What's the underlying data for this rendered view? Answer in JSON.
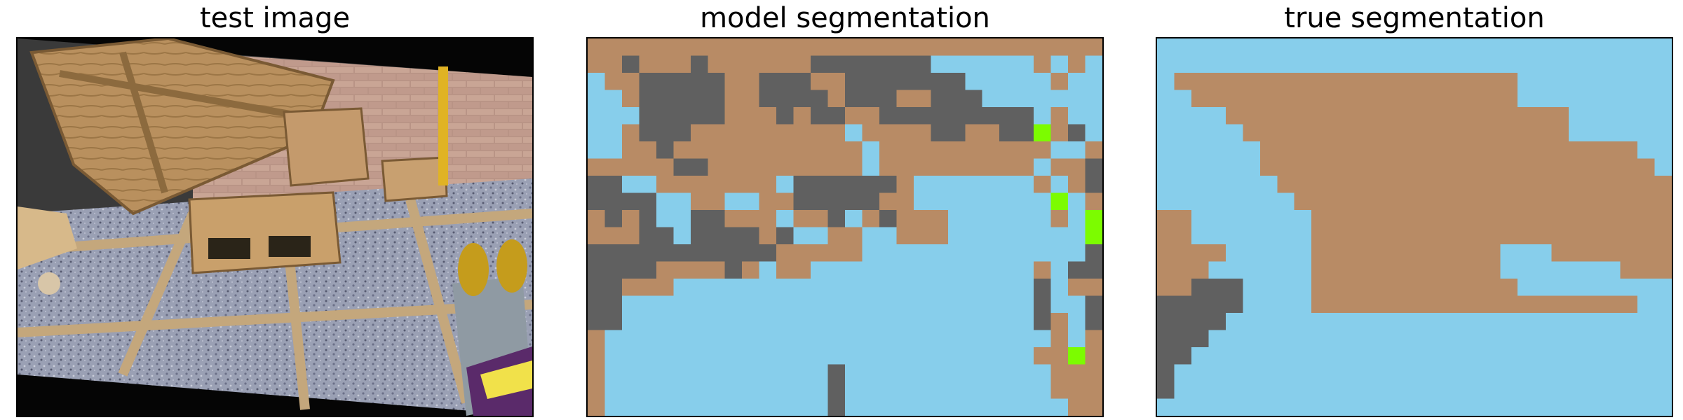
{
  "panels": [
    {
      "title": "test image"
    },
    {
      "title": "model segmentation"
    },
    {
      "title": "true segmentation"
    }
  ],
  "palette": {
    "0": "#87CEEB",
    "1": "#B88B65",
    "2": "#606060",
    "3": "#7CFC00"
  },
  "model_segmentation": [
    "111111111111111111111111111111",
    "112111211111122222220000001010",
    "011222221122211222222200000100",
    "001222221122221222112220000000",
    "000222221112122112222222220100",
    "001222111111111011112211223120",
    "001121111111111101111111111001",
    "111112211111111101111111110112",
    "220011111110222222100000001012",
    "222200110011222221100000000301",
    "121200221110112012111000000103",
    "111220222212001100111000000003",
    "222222222221111100000000000002",
    "222211112101100000000000001022",
    "221110000000000000000000002011",
    "220000000000000000000000002002",
    "220000000000000000000000002102",
    "100000000000000000000000000101",
    "100000000000000000000000001131",
    "100000000000002000000000000111",
    "100000000000002000000000000111",
    "100000000000002000000000000011"
  ],
  "true_segmentation": [
    "000000000000000000000000000000",
    "000000000000000000000000000000",
    "011111111111111111111000000000",
    "001111111111111111111000000000",
    "000011111111111111111111000000",
    "000001111111111111111111000000",
    "000000111111111111111111111100",
    "000000111111111111111111111110",
    "000000011111111111111111111111",
    "000000001111111111111111111111",
    "110000000111111111111111111111",
    "110000000111111111111111111111",
    "111100000111111111110001111111",
    "111000000111111111110000000111",
    "112220000111111111111000000000",
    "222220000111111111111111111100",
    "222200000000000000000000000000",
    "222000000000000000000000000000",
    "220000000000000000000000000000",
    "200000000000000000000000000000",
    "200000000000000000000000000000",
    "000000000000000000000000000000"
  ]
}
